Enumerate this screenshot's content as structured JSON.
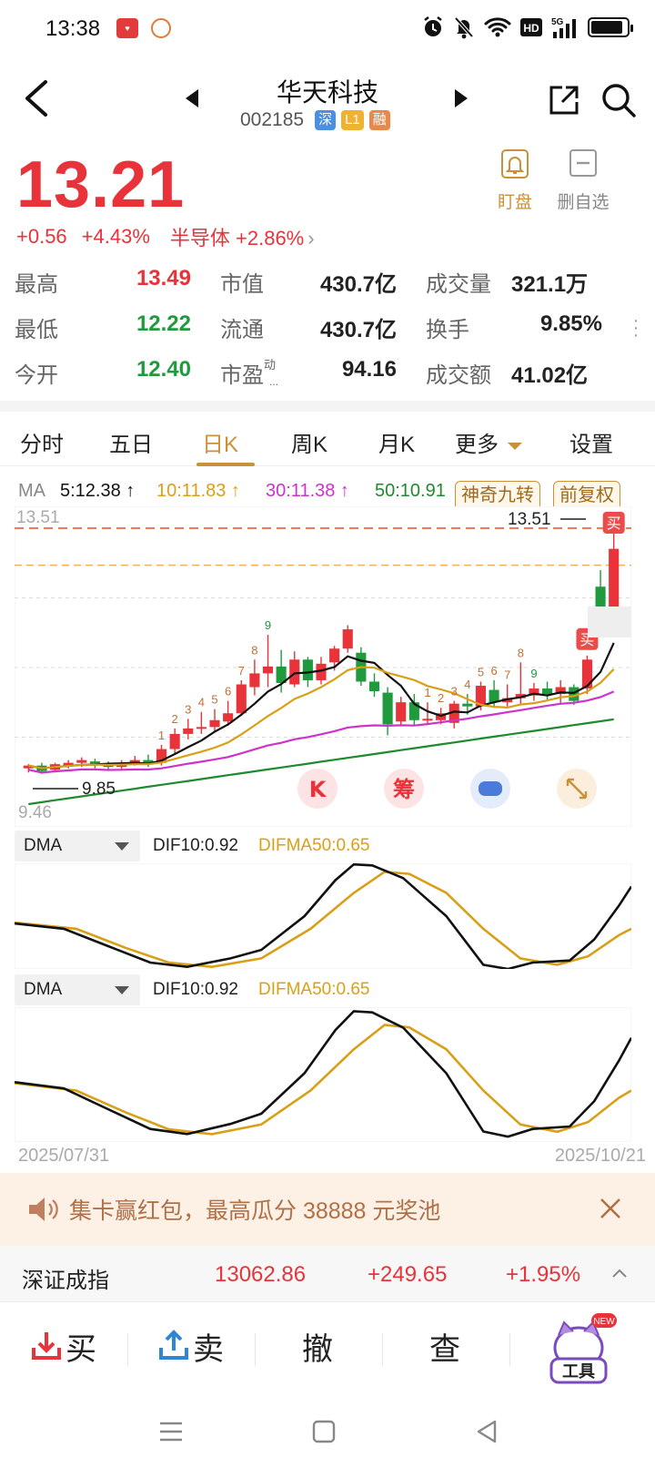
{
  "status": {
    "time": "13:38",
    "network": "5G",
    "hd": "HD"
  },
  "header": {
    "stock_name": "华天科技",
    "stock_code": "002185",
    "tags": [
      "深",
      "L1",
      "融"
    ]
  },
  "quote": {
    "price": "13.21",
    "change": "+0.56",
    "change_pct": "+4.43%",
    "sector": "半导体 +2.86%",
    "watch_label": "盯盘",
    "remove_label": "删自选"
  },
  "stats": {
    "high_label": "最高",
    "high": "13.49",
    "low_label": "最低",
    "low": "12.22",
    "open_label": "今开",
    "open": "12.40",
    "mcap_label": "市值",
    "mcap": "430.7亿",
    "float_label": "流通",
    "float": "430.7亿",
    "pe_label": "市盈",
    "pe_sup": "动",
    "pe_dots": "...",
    "pe": "94.16",
    "volume_label": "成交量",
    "volume": "321.1万",
    "turnover_label": "换手",
    "turnover": "9.85%",
    "amount_label": "成交额",
    "amount": "41.02亿"
  },
  "tabs": {
    "items": [
      "分时",
      "五日",
      "日K",
      "周K",
      "月K",
      "更多"
    ],
    "active": "日K",
    "settings": "设置"
  },
  "ma": {
    "label": "MA",
    "ma5": "5:12.38 ↑",
    "ma10": "10:11.83 ↑",
    "ma30": "30:11.38 ↑",
    "ma50": "50:10.91",
    "btn_nine": "神奇九转",
    "btn_adjust": "前复权"
  },
  "kline": {
    "top_label": "13.51",
    "max_marker": "13.51",
    "min_marker": "9.85",
    "bottom_label": "9.46",
    "buy_label": "买",
    "float_buttons": [
      "K",
      "筹",
      "game-icon",
      "expand-icon"
    ]
  },
  "dma1": {
    "name": "DMA",
    "dif": "DIF10:0.92",
    "difma": "DIFMA50:0.65"
  },
  "dma2": {
    "name": "DMA",
    "dif": "DIF10:0.92",
    "difma": "DIFMA50:0.65"
  },
  "dates": {
    "start": "2025/07/31",
    "end": "2025/10/21"
  },
  "banner": {
    "text": "集卡赢红包，最高瓜分 38888 元奖池"
  },
  "index": {
    "name": "深证成指",
    "value": "13062.86",
    "change": "+249.65",
    "change_pct": "+1.95%"
  },
  "trade": {
    "buy": "买",
    "sell": "卖",
    "cancel": "撤",
    "query": "查",
    "tools": "工具",
    "new_badge": "NEW"
  },
  "colors": {
    "up": "#e8333a",
    "down": "#1f9a3c",
    "accent": "#c9923a",
    "ma5": "#111111",
    "ma10": "#d9a017",
    "ma30": "#cc33cc",
    "ma50": "#1f8a2e"
  }
}
